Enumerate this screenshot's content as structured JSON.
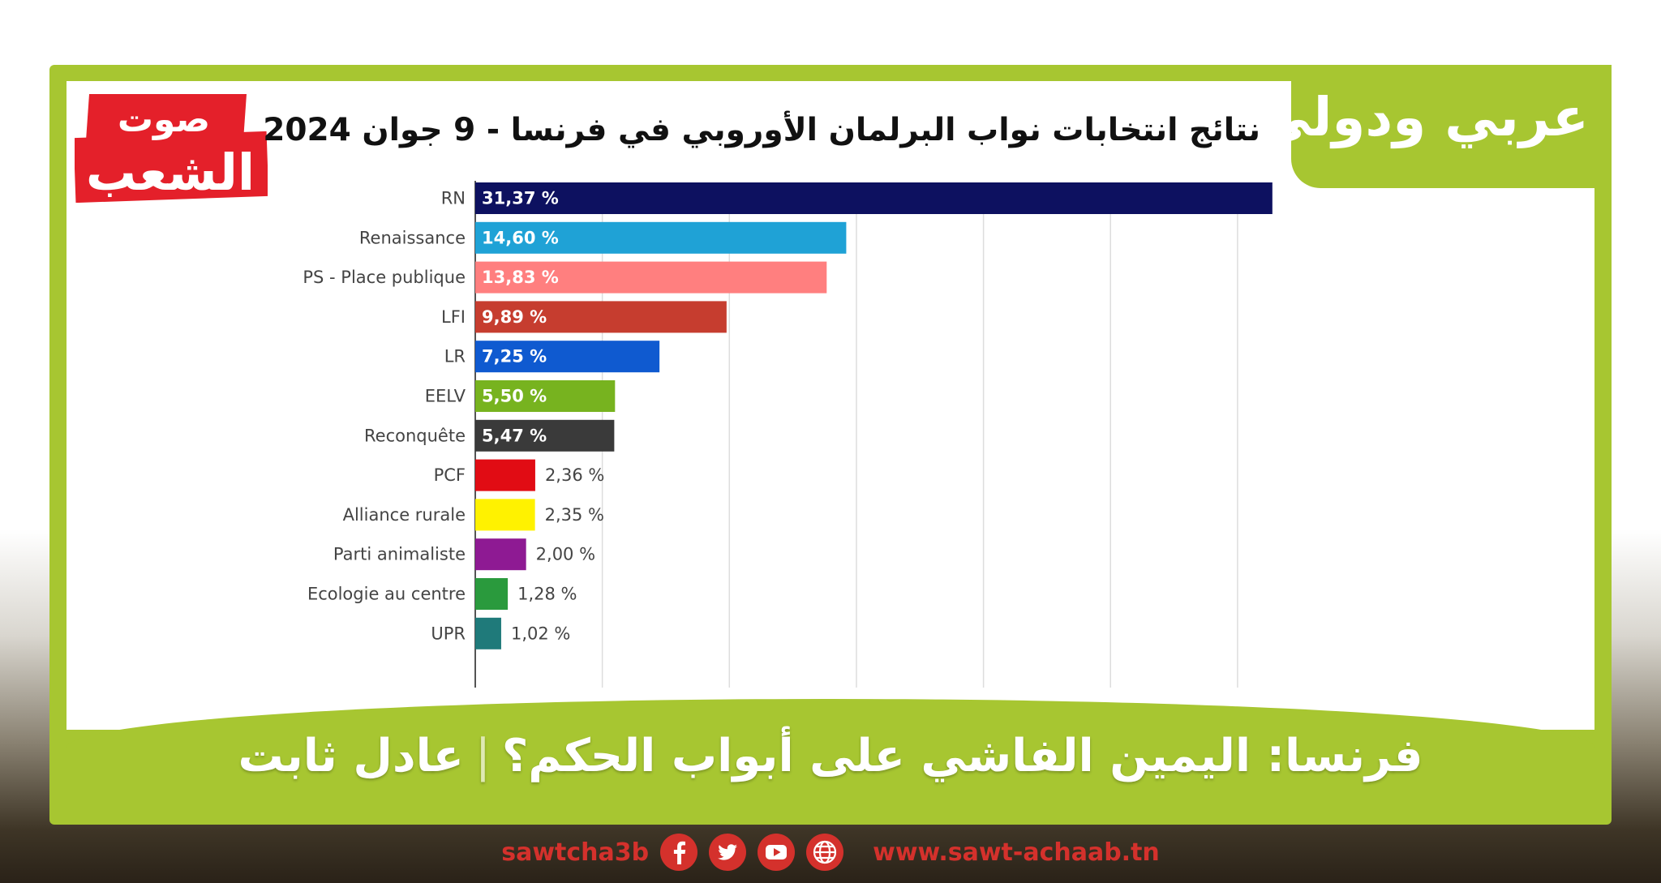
{
  "brand": {
    "logo_line1": "صوت",
    "logo_line2": "الشعب",
    "section_label": "عربي ودولي"
  },
  "chart_data": {
    "type": "bar",
    "orientation": "horizontal",
    "title": "نتائج انتخابات نواب البرلمان الأوروبي في فرنسا - 9 جوان 2024",
    "categories": [
      "RN",
      "Renaissance",
      "PS - Place publique",
      "LFI",
      "LR",
      "EELV",
      "Reconquête",
      "PCF",
      "Alliance rurale",
      "Parti animaliste",
      "Ecologie au centre",
      "UPR"
    ],
    "values": [
      31.37,
      14.6,
      13.83,
      9.89,
      7.25,
      5.5,
      5.47,
      2.36,
      2.35,
      2.0,
      1.28,
      1.02
    ],
    "value_labels": [
      "31,37 %",
      "14,60 %",
      "13,83 %",
      "9,89 %",
      "7,25 %",
      "5,50 %",
      "5,47 %",
      "2,36 %",
      "2,35 %",
      "2,00 %",
      "1,28 %",
      "1,02 %"
    ],
    "colors": [
      "#0d1160",
      "#1fa2d6",
      "#ff7f7f",
      "#c63d2f",
      "#0f5ad0",
      "#77b31f",
      "#3a3a3a",
      "#e10c14",
      "#fff200",
      "#8e1a93",
      "#2a9a3d",
      "#1f7a7a"
    ],
    "xlabel": "",
    "ylabel": "",
    "xlim": [
      0,
      35
    ],
    "grid": true
  },
  "headline": {
    "title": "فرنسا: اليمين الفاشي على أبواب الحكم؟",
    "separator": "|",
    "author": "عادل ثابت"
  },
  "footer": {
    "handle": "sawtcha3b",
    "icons": [
      "facebook-icon",
      "twitter-icon",
      "youtube-icon",
      "globe-icon"
    ],
    "website": "www.sawt-achaab.tn"
  }
}
